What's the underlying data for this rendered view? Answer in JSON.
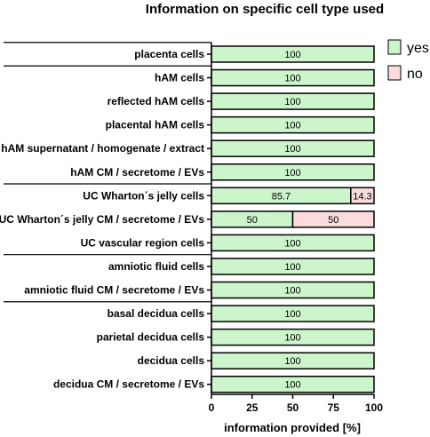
{
  "chart_data": {
    "type": "bar",
    "orientation": "horizontal",
    "stacked": true,
    "title": "Information on specific cell type used",
    "xlabel": "information provided [%]",
    "xlim": [
      0,
      100
    ],
    "x_ticks": [
      "0",
      "25",
      "50",
      "75",
      "100"
    ],
    "grid": false,
    "legend_position": "top-right",
    "categories": [
      "placenta cells",
      "hAM cells",
      "reflected hAM cells",
      "placental hAM cells",
      "hAM supernatant / homogenate / extract",
      "hAM CM / secretome / EVs",
      "UC Wharton´s jelly cells",
      "UC Wharton´s jelly CM / secretome / EVs",
      "UC vascular region cells",
      "amniotic fluid cells",
      "amniotic fluid CM / secretome / EVs",
      "basal decidua cells",
      "parietal decidua cells",
      "decidua cells",
      "decidua CM / secretome / EVs"
    ],
    "series": [
      {
        "name": "yes",
        "color": "#ccf5cc",
        "values": [
          100,
          100,
          100,
          100,
          100,
          100,
          85.7,
          50,
          100,
          100,
          100,
          100,
          100,
          100,
          100
        ],
        "labels": [
          "100",
          "100",
          "100",
          "100",
          "100",
          "100",
          "85.7",
          "50",
          "100",
          "100",
          "100",
          "100",
          "100",
          "100",
          "100"
        ]
      },
      {
        "name": "no",
        "color": "#fbdcdc",
        "values": [
          0,
          0,
          0,
          0,
          0,
          0,
          14.3,
          50,
          0,
          0,
          0,
          0,
          0,
          0,
          0
        ],
        "labels": [
          "",
          "",
          "",
          "",
          "",
          "",
          "14.3",
          "50",
          "",
          "",
          "",
          "",
          "",
          "",
          ""
        ]
      }
    ],
    "group_separators_after": [
      0,
      5,
      8,
      10
    ]
  }
}
